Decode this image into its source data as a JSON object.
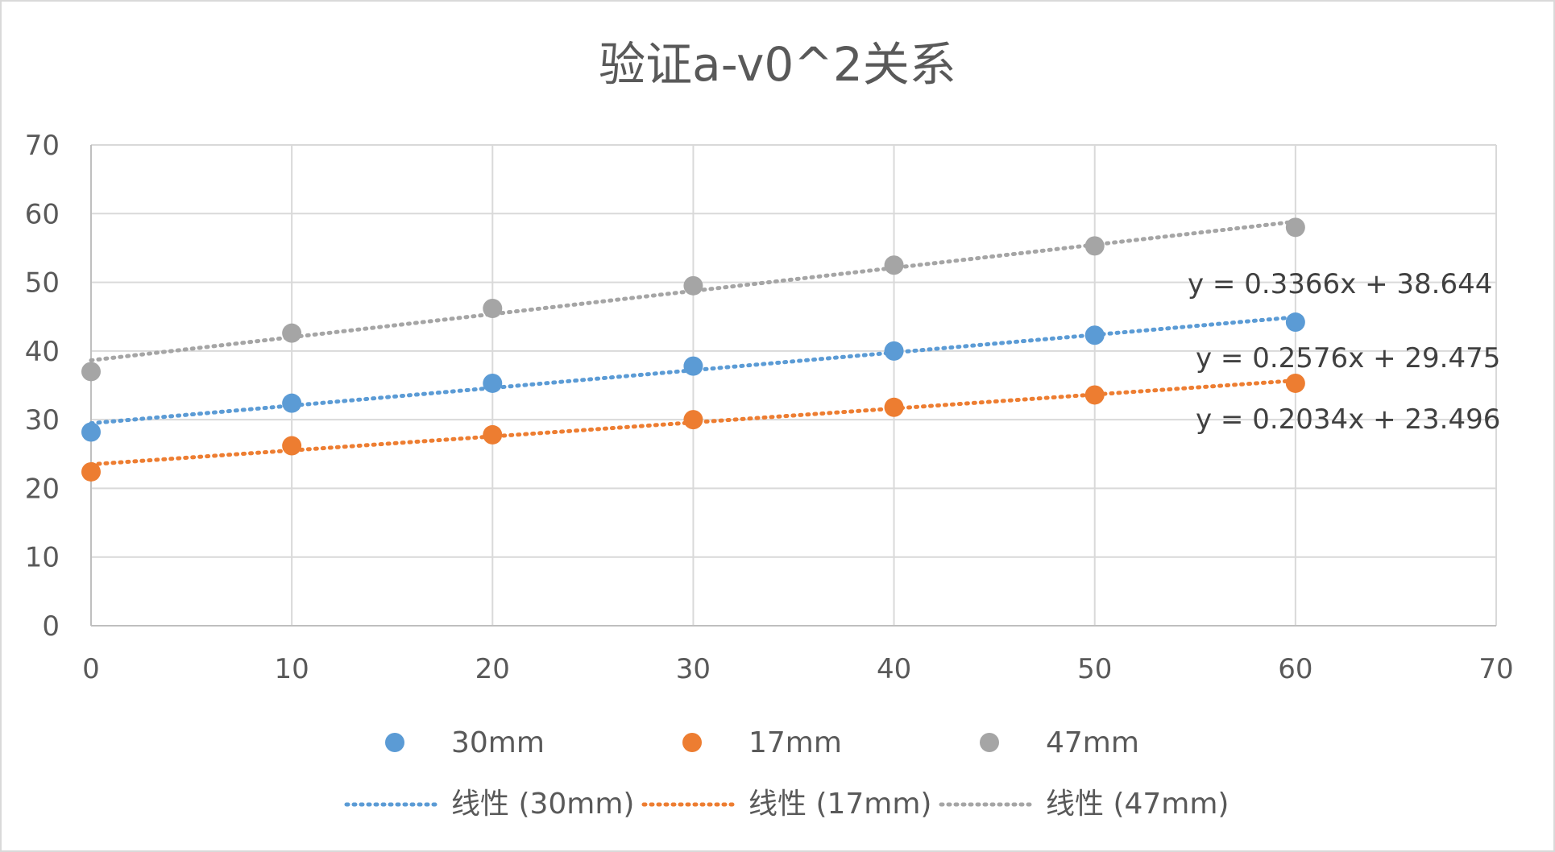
{
  "chart_data": {
    "type": "scatter",
    "title": "验证a-v0^2关系",
    "xlabel": "",
    "ylabel": "",
    "xlim": [
      0,
      70
    ],
    "ylim": [
      0,
      70
    ],
    "x_ticks": [
      "0",
      "10",
      "20",
      "30",
      "40",
      "50",
      "60",
      "70"
    ],
    "y_ticks": [
      "0",
      "10",
      "20",
      "30",
      "40",
      "50",
      "60",
      "70"
    ],
    "grid": true,
    "legend_position": "bottom",
    "series": [
      {
        "name": "30mm",
        "color": "#5b9bd5",
        "x": [
          0,
          10,
          20,
          30,
          40,
          50,
          60
        ],
        "y": [
          28.2,
          32.4,
          35.3,
          37.8,
          40.0,
          42.3,
          44.2
        ],
        "trendline": {
          "label": "线性 (30mm)",
          "slope": 0.2576,
          "intercept": 29.475,
          "equation": "y = 0.2576x + 29.475"
        }
      },
      {
        "name": "17mm",
        "color": "#ed7d31",
        "x": [
          0,
          10,
          20,
          30,
          40,
          50,
          60
        ],
        "y": [
          22.4,
          26.2,
          27.8,
          30.0,
          31.8,
          33.6,
          35.3
        ],
        "trendline": {
          "label": "线性 (17mm)",
          "slope": 0.2034,
          "intercept": 23.496,
          "equation": "y = 0.2034x + 23.496"
        }
      },
      {
        "name": "47mm",
        "color": "#a5a5a5",
        "x": [
          0,
          10,
          20,
          30,
          40,
          50,
          60
        ],
        "y": [
          37.0,
          42.6,
          46.2,
          49.5,
          52.5,
          55.3,
          58.0
        ],
        "trendline": {
          "label": "线性 (47mm)",
          "slope": 0.3366,
          "intercept": 38.644,
          "equation": "y = 0.3366x + 38.644"
        }
      }
    ]
  }
}
